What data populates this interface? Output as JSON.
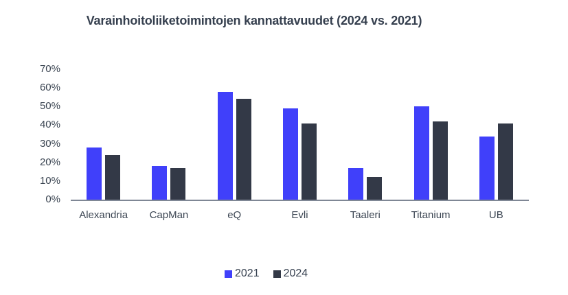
{
  "title": "Varainhoitoliiketoimintojen kannattavuudet (2024 vs. 2021)",
  "chart_data": {
    "type": "bar",
    "title": "Varainhoitoliiketoimintojen kannattavuudet (2024 vs. 2021)",
    "categories": [
      "Alexandria",
      "CapMan",
      "eQ",
      "Evli",
      "Taaleri",
      "Titanium",
      "UB"
    ],
    "series": [
      {
        "name": "2021",
        "color": "#4040fa",
        "values": [
          28,
          18,
          58,
          49,
          17,
          50,
          34
        ]
      },
      {
        "name": "2024",
        "color": "#333947",
        "values": [
          24,
          17,
          54,
          41,
          12,
          42,
          41
        ]
      }
    ],
    "unit": "%",
    "xlabel": "",
    "ylabel": "",
    "ylim": [
      0,
      70
    ],
    "ytick_step": 10,
    "yticks": [
      "0%",
      "10%",
      "20%",
      "30%",
      "40%",
      "50%",
      "60%",
      "70%"
    ],
    "grid": false,
    "legend_position": "bottom"
  },
  "colors": {
    "title_text": "#36404f",
    "axis_text": "#3b4552",
    "axis_line": "#7f8795",
    "background": "#ffffff"
  }
}
